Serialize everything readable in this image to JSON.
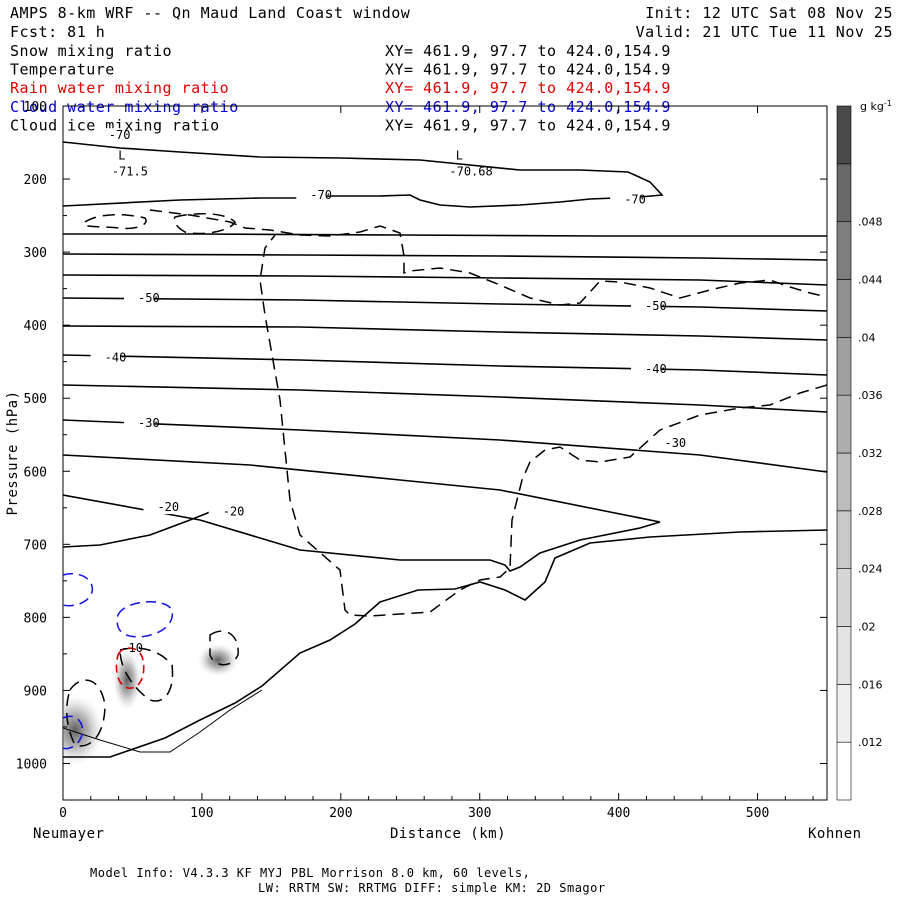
{
  "header": {
    "title": "AMPS 8-km WRF -- Qn Maud Land Coast window",
    "init": "Init: 12 UTC Sat 08 Nov 25",
    "fcst": "Fcst:   81 h",
    "valid": "Valid: 21 UTC Tue 11 Nov 25"
  },
  "variables": [
    {
      "name": "Snow mixing ratio",
      "xy": "XY= 461.9, 97.7 to 424.0,154.9",
      "color": "#000000"
    },
    {
      "name": "Temperature",
      "xy": "XY= 461.9, 97.7 to 424.0,154.9",
      "color": "#000000"
    },
    {
      "name": "Rain water mixing ratio",
      "xy": "XY= 461.9, 97.7 to 424.0,154.9",
      "color": "#e00000"
    },
    {
      "name": "Cloud water mixing ratio",
      "xy": "XY= 461.9, 97.7 to 424.0,154.9",
      "color": "#0000d0"
    },
    {
      "name": "Cloud ice mixing ratio",
      "xy": "XY= 461.9, 97.7 to 424.0,154.9",
      "color": "#000000"
    }
  ],
  "footer": {
    "line1": "Model Info: V4.3.3   KF      MYJ PBL  Morrison             8.0 km,  60 levels,",
    "line2": "LW: RRTM SW: RRTMG   DIFF: simple KM: 2D Smagor"
  },
  "chart_data": {
    "type": "cross-section",
    "title": "AMPS 8-km WRF -- Qn Maud Land Coast window",
    "xlabel": "Distance (km)",
    "ylabel": "Pressure (hPa)",
    "xlim": [
      0,
      550
    ],
    "ylim": [
      1050,
      100
    ],
    "xticks": [
      0,
      100,
      200,
      300,
      400,
      500
    ],
    "yticks": [
      100,
      200,
      300,
      400,
      500,
      600,
      700,
      800,
      900,
      1000
    ],
    "left_endpoint": "Neumayer",
    "right_endpoint": "Kohnen",
    "colorbar": {
      "unit": "g kg",
      "unit_exp": "-1",
      "ticks": [
        "",
        ".012",
        ".016",
        ".02",
        ".024",
        ".028",
        ".032",
        ".036",
        ".04",
        ".044",
        ".048",
        ""
      ],
      "colors": [
        "#ffffff",
        "#f0f0f0",
        "#e3e3e3",
        "#d6d6d6",
        "#c9c9c9",
        "#bcbcbc",
        "#aeaeae",
        "#a0a0a0",
        "#909090",
        "#7e7e7e",
        "#686868",
        "#4a4a4a"
      ]
    },
    "temperature_labels": [
      {
        "text": "-70",
        "x": 33,
        "p": 140
      },
      {
        "text": "-70",
        "x": 178,
        "p": 222
      },
      {
        "text": "-70",
        "x": 404,
        "p": 228
      },
      {
        "text": "-50",
        "x": 54,
        "p": 363
      },
      {
        "text": "-50",
        "x": 419,
        "p": 374
      },
      {
        "text": "-40",
        "x": 30,
        "p": 444
      },
      {
        "text": "-40",
        "x": 419,
        "p": 460
      },
      {
        "text": "-30",
        "x": 54,
        "p": 534
      },
      {
        "text": "-30",
        "x": 433,
        "p": 561
      },
      {
        "text": "-20",
        "x": 68,
        "p": 649
      },
      {
        "text": "-20",
        "x": 115,
        "p": 655
      }
    ],
    "lows": [
      {
        "mark": "L",
        "value": "-71.5",
        "x": 33,
        "p": 190
      },
      {
        "mark": "L",
        "value": "-70.68",
        "x": 276,
        "p": 190
      }
    ],
    "annotations": [
      {
        "text": "-10",
        "x": 47,
        "p": 842
      }
    ]
  }
}
